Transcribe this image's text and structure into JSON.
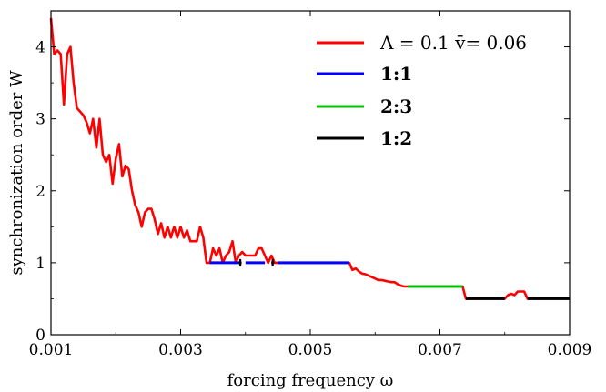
{
  "chart_data": {
    "type": "line",
    "xlabel": "forcing frequency ω",
    "ylabel": "synchronization order W",
    "xlim": [
      0.001,
      0.009
    ],
    "ylim": [
      0,
      4.5
    ],
    "x_ticks": [
      0.001,
      0.003,
      0.005,
      0.007,
      0.009
    ],
    "x_tick_labels": [
      "0.001",
      "0.003",
      "0.005",
      "0.007",
      "0.009"
    ],
    "y_ticks": [
      0,
      1,
      2,
      3,
      4
    ],
    "y_tick_labels": [
      "0",
      "1",
      "2",
      "3",
      "4"
    ],
    "grid": false,
    "legend_position": "top-right",
    "series": [
      {
        "name": "A = 0.1   v̄= 0.06",
        "color": "#ff0000",
        "points": [
          [
            0.001,
            4.4
          ],
          [
            0.00105,
            3.9
          ],
          [
            0.0011,
            3.95
          ],
          [
            0.00115,
            3.9
          ],
          [
            0.0012,
            3.2
          ],
          [
            0.00125,
            3.9
          ],
          [
            0.0013,
            4.0
          ],
          [
            0.00135,
            3.5
          ],
          [
            0.0014,
            3.15
          ],
          [
            0.00145,
            3.1
          ],
          [
            0.0015,
            3.05
          ],
          [
            0.00155,
            2.95
          ],
          [
            0.0016,
            2.8
          ],
          [
            0.00165,
            3.0
          ],
          [
            0.0017,
            2.6
          ],
          [
            0.00175,
            3.0
          ],
          [
            0.0018,
            2.5
          ],
          [
            0.00185,
            2.4
          ],
          [
            0.0019,
            2.5
          ],
          [
            0.00195,
            2.1
          ],
          [
            0.002,
            2.45
          ],
          [
            0.00205,
            2.65
          ],
          [
            0.0021,
            2.2
          ],
          [
            0.00215,
            2.35
          ],
          [
            0.0022,
            2.3
          ],
          [
            0.00225,
            2.0
          ],
          [
            0.0023,
            1.8
          ],
          [
            0.00235,
            1.7
          ],
          [
            0.0024,
            1.5
          ],
          [
            0.00245,
            1.7
          ],
          [
            0.0025,
            1.75
          ],
          [
            0.00255,
            1.75
          ],
          [
            0.0026,
            1.6
          ],
          [
            0.00265,
            1.4
          ],
          [
            0.0027,
            1.55
          ],
          [
            0.00275,
            1.35
          ],
          [
            0.0028,
            1.5
          ],
          [
            0.00285,
            1.35
          ],
          [
            0.0029,
            1.5
          ],
          [
            0.00295,
            1.35
          ],
          [
            0.003,
            1.5
          ],
          [
            0.00305,
            1.35
          ],
          [
            0.0031,
            1.45
          ],
          [
            0.00315,
            1.3
          ],
          [
            0.0032,
            1.3
          ],
          [
            0.00325,
            1.3
          ],
          [
            0.0033,
            1.5
          ],
          [
            0.00335,
            1.35
          ],
          [
            0.0034,
            1.0
          ],
          [
            0.00345,
            1.0
          ],
          [
            0.0035,
            1.2
          ],
          [
            0.00355,
            1.1
          ],
          [
            0.0036,
            1.2
          ],
          [
            0.00365,
            1.0
          ],
          [
            0.0037,
            1.1
          ],
          [
            0.00375,
            1.15
          ],
          [
            0.0038,
            1.3
          ],
          [
            0.00385,
            1.0
          ],
          [
            0.0039,
            1.1
          ],
          [
            0.00395,
            1.15
          ],
          [
            0.004,
            1.1
          ],
          [
            0.00405,
            1.1
          ],
          [
            0.0041,
            1.1
          ],
          [
            0.00415,
            1.1
          ],
          [
            0.0042,
            1.2
          ],
          [
            0.00425,
            1.2
          ],
          [
            0.0043,
            1.1
          ],
          [
            0.00435,
            1.0
          ],
          [
            0.0044,
            1.1
          ],
          [
            0.00445,
            1.0
          ],
          [
            0.0056,
            1.0
          ],
          [
            0.00565,
            0.9
          ],
          [
            0.0057,
            0.92
          ],
          [
            0.00575,
            0.88
          ],
          [
            0.0058,
            0.85
          ],
          [
            0.00585,
            0.84
          ],
          [
            0.0059,
            0.82
          ],
          [
            0.00595,
            0.8
          ],
          [
            0.006,
            0.78
          ],
          [
            0.00605,
            0.76
          ],
          [
            0.0061,
            0.76
          ],
          [
            0.00615,
            0.75
          ],
          [
            0.0062,
            0.74
          ],
          [
            0.00625,
            0.73
          ],
          [
            0.0063,
            0.73
          ],
          [
            0.00635,
            0.7
          ],
          [
            0.0064,
            0.68
          ],
          [
            0.00645,
            0.67
          ],
          [
            0.0065,
            0.67
          ],
          [
            0.00735,
            0.67
          ],
          [
            0.0074,
            0.5
          ],
          [
            0.008,
            0.5
          ],
          [
            0.00805,
            0.55
          ],
          [
            0.0081,
            0.57
          ],
          [
            0.00815,
            0.55
          ],
          [
            0.0082,
            0.6
          ],
          [
            0.0083,
            0.6
          ],
          [
            0.00835,
            0.5
          ],
          [
            0.009,
            0.5
          ]
        ]
      },
      {
        "name": "1:1",
        "color": "#0000ff",
        "segments": [
          [
            [
              0.00345,
              1.0
            ],
            [
              0.0039,
              1.0
            ]
          ],
          [
            [
              0.004,
              1.0
            ],
            [
              0.0043,
              1.0
            ]
          ],
          [
            [
              0.0045,
              1.0
            ],
            [
              0.0056,
              1.0
            ]
          ]
        ]
      },
      {
        "name": "2:3",
        "color": "#00c000",
        "segments": [
          [
            [
              0.0065,
              0.67
            ],
            [
              0.00735,
              0.67
            ]
          ]
        ]
      },
      {
        "name": "1:2",
        "color": "#000000",
        "segments": [
          [
            [
              0.0074,
              0.5
            ],
            [
              0.008,
              0.5
            ]
          ],
          [
            [
              0.00835,
              0.5
            ],
            [
              0.009,
              0.5
            ]
          ]
        ],
        "markers": [
          [
            0.00392,
            1.0
          ],
          [
            0.00442,
            1.0
          ]
        ]
      }
    ]
  }
}
